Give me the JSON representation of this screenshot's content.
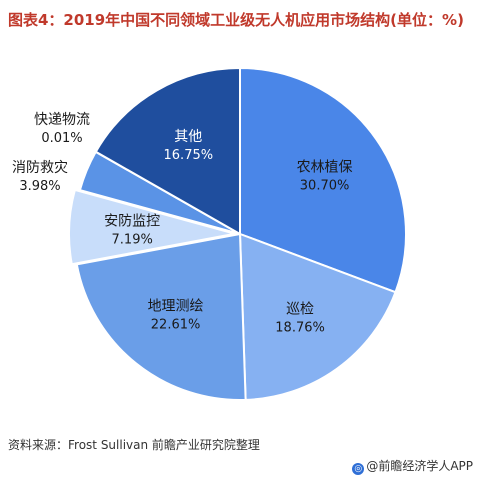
{
  "title": "图表4：2019年中国不同领域工业级无人机应用市场结构(单位：%)",
  "source": "资料来源：Frost Sullivan 前瞻产业研究院整理",
  "footer_brand": "@前瞻经济学人APP",
  "colors": {
    "title": "#c0392b",
    "slice_border": "#ffffff"
  },
  "chart_data": {
    "type": "pie",
    "title": "图表4：2019年中国不同领域工业级无人机应用市场结构(单位：%)",
    "unit": "%",
    "start_angle_deg": 0,
    "direction": "clockwise",
    "slices": [
      {
        "name": "农林植保",
        "value": 30.7,
        "label": "30.70%",
        "color": "#4a86e8",
        "label_color": "#1a1a1a",
        "explode": 0
      },
      {
        "name": "巡检",
        "value": 18.76,
        "label": "18.76%",
        "color": "#86b1f2",
        "label_color": "#1a1a1a",
        "explode": 0
      },
      {
        "name": "地理测绘",
        "value": 22.61,
        "label": "22.61%",
        "color": "#6a9ee8",
        "label_color": "#1a1a1a",
        "explode": 0
      },
      {
        "name": "安防监控",
        "value": 7.19,
        "label": "7.19%",
        "color": "#c8ddfa",
        "label_color": "#1a1a1a",
        "explode": 1
      },
      {
        "name": "消防救灾",
        "value": 3.98,
        "label": "3.98%",
        "color": "#5a93e6",
        "label_color": "#1a1a1a",
        "explode": 0
      },
      {
        "name": "快递物流",
        "value": 0.01,
        "label": "0.01%",
        "color": "#3f7fdc",
        "label_color": "#1a1a1a",
        "explode": 0
      },
      {
        "name": "其他",
        "value": 16.75,
        "label": "16.75%",
        "color": "#1f4e9e",
        "label_color": "#ffffff",
        "explode": 0
      }
    ]
  }
}
